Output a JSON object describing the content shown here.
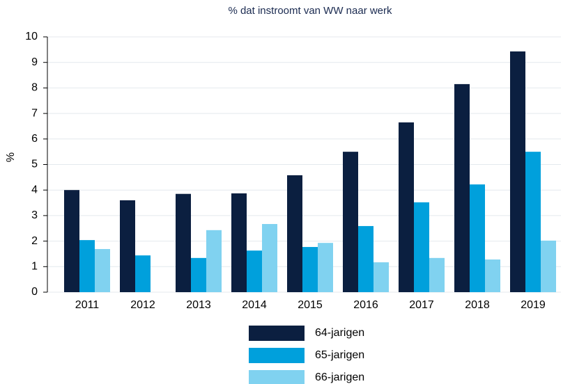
{
  "chart_data": {
    "type": "bar",
    "title": "% dat instroomt van WW naar werk",
    "y_label": "%",
    "categories": [
      "2011",
      "2012",
      "2013",
      "2014",
      "2015",
      "2016",
      "2017",
      "2018",
      "2019"
    ],
    "series": [
      {
        "name": "64-jarigen",
        "color": "#0b1f40",
        "values": [
          4.0,
          3.6,
          3.85,
          3.87,
          4.58,
          5.5,
          6.65,
          8.15,
          9.43
        ]
      },
      {
        "name": "65-jarigen",
        "color": "#00a0dc",
        "values": [
          2.04,
          1.44,
          1.34,
          1.63,
          1.77,
          2.59,
          3.52,
          4.22,
          5.5
        ]
      },
      {
        "name": "66-jarigen",
        "color": "#80d2f0",
        "values": [
          1.69,
          null,
          2.43,
          2.67,
          1.93,
          1.17,
          1.34,
          1.28,
          2.02
        ]
      }
    ],
    "ylim": [
      0,
      10
    ],
    "yticks": [
      0,
      1,
      2,
      3,
      4,
      5,
      6,
      7,
      8,
      9,
      10
    ],
    "grid": true,
    "legend": "bottom"
  }
}
